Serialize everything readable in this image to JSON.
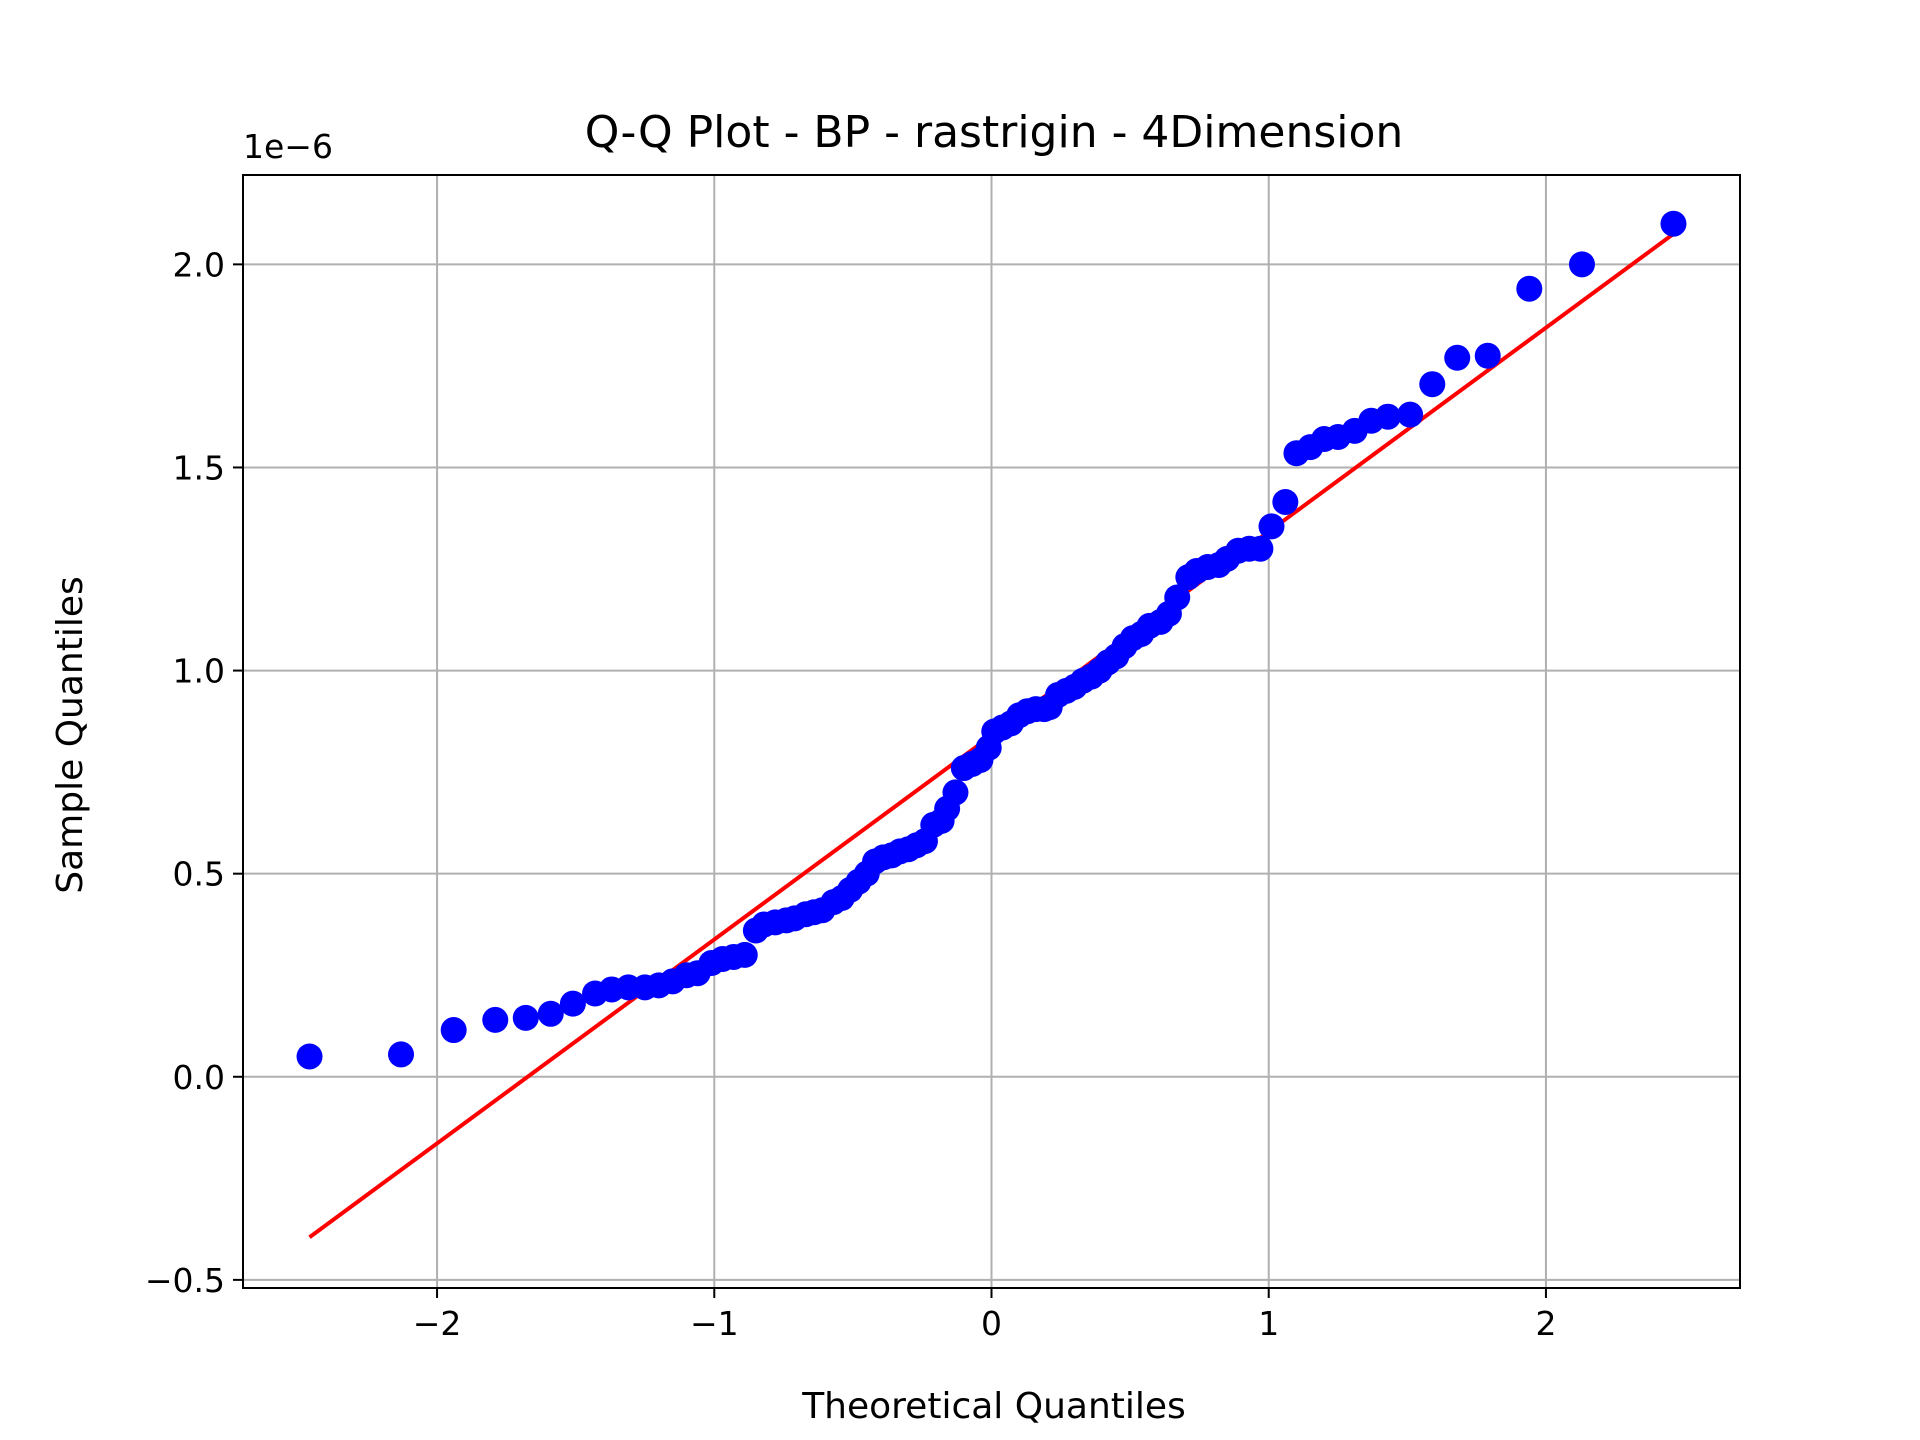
{
  "chart_data": {
    "type": "scatter",
    "title": "Q-Q Plot - BP - rastrigin - 4Dimension",
    "xlabel": "Theoretical Quantiles",
    "ylabel": "Sample Quantiles",
    "y_offset_label": "1e−6",
    "xlim": [
      -2.7,
      2.7
    ],
    "ylim": [
      -0.52,
      2.22
    ],
    "x_ticks": [
      -2,
      -1,
      0,
      1,
      2
    ],
    "x_tick_labels": [
      "−2",
      "−1",
      "0",
      "1",
      "2"
    ],
    "y_ticks": [
      -0.5,
      0.0,
      0.5,
      1.0,
      1.5,
      2.0
    ],
    "y_tick_labels": [
      "−0.5",
      "0.0",
      "0.5",
      "1.0",
      "1.5",
      "2.0"
    ],
    "grid": true,
    "marker_color": "#0000ff",
    "line_color": "#ff0000",
    "points": [
      [
        -2.46,
        0.05
      ],
      [
        -2.13,
        0.055
      ],
      [
        -1.94,
        0.115
      ],
      [
        -1.79,
        0.14
      ],
      [
        -1.68,
        0.145
      ],
      [
        -1.59,
        0.155
      ],
      [
        -1.51,
        0.18
      ],
      [
        -1.43,
        0.205
      ],
      [
        -1.37,
        0.215
      ],
      [
        -1.31,
        0.22
      ],
      [
        -1.25,
        0.22
      ],
      [
        -1.2,
        0.225
      ],
      [
        -1.15,
        0.235
      ],
      [
        -1.1,
        0.25
      ],
      [
        -1.06,
        0.255
      ],
      [
        -1.01,
        0.28
      ],
      [
        -0.97,
        0.29
      ],
      [
        -0.93,
        0.295
      ],
      [
        -0.89,
        0.3
      ],
      [
        -0.85,
        0.36
      ],
      [
        -0.82,
        0.375
      ],
      [
        -0.78,
        0.38
      ],
      [
        -0.74,
        0.385
      ],
      [
        -0.71,
        0.39
      ],
      [
        -0.67,
        0.4
      ],
      [
        -0.64,
        0.405
      ],
      [
        -0.61,
        0.41
      ],
      [
        -0.57,
        0.43
      ],
      [
        -0.54,
        0.44
      ],
      [
        -0.51,
        0.46
      ],
      [
        -0.48,
        0.48
      ],
      [
        -0.45,
        0.5
      ],
      [
        -0.42,
        0.53
      ],
      [
        -0.39,
        0.54
      ],
      [
        -0.36,
        0.545
      ],
      [
        -0.33,
        0.555
      ],
      [
        -0.3,
        0.56
      ],
      [
        -0.27,
        0.57
      ],
      [
        -0.24,
        0.58
      ],
      [
        -0.21,
        0.62
      ],
      [
        -0.18,
        0.63
      ],
      [
        -0.16,
        0.66
      ],
      [
        -0.13,
        0.7
      ],
      [
        -0.1,
        0.76
      ],
      [
        -0.07,
        0.77
      ],
      [
        -0.04,
        0.78
      ],
      [
        -0.01,
        0.81
      ],
      [
        0.01,
        0.85
      ],
      [
        0.04,
        0.86
      ],
      [
        0.07,
        0.87
      ],
      [
        0.1,
        0.89
      ],
      [
        0.13,
        0.9
      ],
      [
        0.16,
        0.905
      ],
      [
        0.19,
        0.905
      ],
      [
        0.21,
        0.91
      ],
      [
        0.24,
        0.94
      ],
      [
        0.27,
        0.95
      ],
      [
        0.3,
        0.96
      ],
      [
        0.33,
        0.975
      ],
      [
        0.36,
        0.985
      ],
      [
        0.39,
        1.0
      ],
      [
        0.42,
        1.02
      ],
      [
        0.45,
        1.035
      ],
      [
        0.48,
        1.06
      ],
      [
        0.51,
        1.08
      ],
      [
        0.54,
        1.09
      ],
      [
        0.57,
        1.11
      ],
      [
        0.61,
        1.12
      ],
      [
        0.64,
        1.14
      ],
      [
        0.67,
        1.18
      ],
      [
        0.71,
        1.23
      ],
      [
        0.74,
        1.245
      ],
      [
        0.78,
        1.255
      ],
      [
        0.82,
        1.26
      ],
      [
        0.85,
        1.275
      ],
      [
        0.89,
        1.295
      ],
      [
        0.93,
        1.3
      ],
      [
        0.97,
        1.3
      ],
      [
        1.01,
        1.355
      ],
      [
        1.06,
        1.415
      ],
      [
        1.1,
        1.535
      ],
      [
        1.15,
        1.55
      ],
      [
        1.2,
        1.57
      ],
      [
        1.25,
        1.575
      ],
      [
        1.31,
        1.59
      ],
      [
        1.37,
        1.615
      ],
      [
        1.43,
        1.625
      ],
      [
        1.51,
        1.63
      ],
      [
        1.59,
        1.705
      ],
      [
        1.68,
        1.77
      ],
      [
        1.79,
        1.775
      ],
      [
        1.94,
        1.94
      ],
      [
        2.13,
        2.0
      ],
      [
        2.46,
        2.1
      ]
    ],
    "fit_line": [
      [
        -2.46,
        -0.395
      ],
      [
        2.46,
        2.075
      ]
    ]
  }
}
